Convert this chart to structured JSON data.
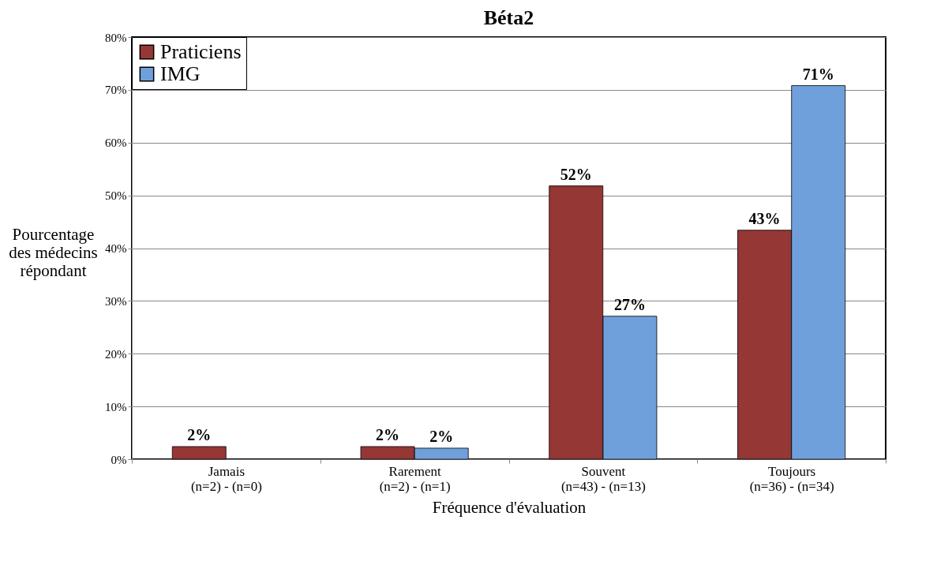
{
  "chart_data": {
    "type": "bar",
    "title": "Béta2",
    "xlabel": "Fréquence d'évaluation",
    "ylabel": "Pourcentage\ndes médecins\nrépondant",
    "categories": [
      "Jamais\n(n=2) - (n=0)",
      "Rarement\n(n=2) - (n=1)",
      "Souvent\n(n=43) - (n=13)",
      "Toujours\n(n=36) - (n=34)"
    ],
    "series": [
      {
        "name": "Praticiens",
        "color": "#953735",
        "values": [
          2.4,
          2.4,
          51.8,
          43.4
        ],
        "value_labels": [
          "2%",
          "2%",
          "52%",
          "43%"
        ]
      },
      {
        "name": "IMG",
        "color": "#6fa0dc",
        "values": [
          0,
          2.1,
          27.1,
          70.8
        ],
        "value_labels": [
          null,
          "2%",
          "27%",
          "71%"
        ]
      }
    ],
    "ylim": [
      0,
      80
    ],
    "yticks": [
      {
        "value": 0,
        "label": "0%"
      },
      {
        "value": 10,
        "label": "10%"
      },
      {
        "value": 20,
        "label": "20%"
      },
      {
        "value": 30,
        "label": "30%"
      },
      {
        "value": 40,
        "label": "40%"
      },
      {
        "value": 50,
        "label": "50%"
      },
      {
        "value": 60,
        "label": "60%"
      },
      {
        "value": 70,
        "label": "70%"
      },
      {
        "value": 80,
        "label": "80%"
      }
    ],
    "grid": "y",
    "legend": "top left"
  }
}
